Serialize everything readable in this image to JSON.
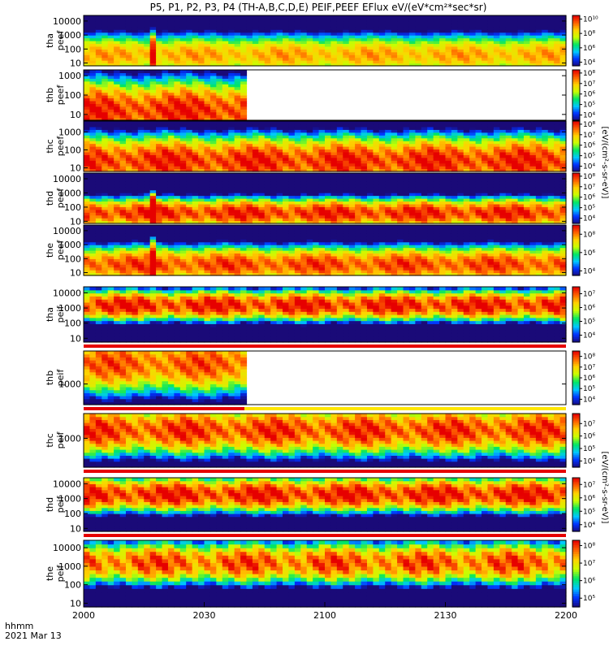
{
  "chart_data": {
    "type": "heatmap",
    "title": "P5, P1, P2, P3, P4 (TH-A,B,C,D,E) PEIF,PEEF EFlux eV/(eV*cm²*sec*sr)",
    "x_tick_labels": [
      "2000",
      "2030",
      "2100",
      "2130",
      "2200"
    ],
    "x_range_minutes": [
      0,
      120
    ],
    "footer_lines": [
      "hhmm",
      "2021 Mar 13"
    ],
    "colorbar_unit_electron": "[eV/(cm²-s-sr-eV)]",
    "colorbar_unit_ion": "[eV/(cm²-s-sr-eV)]",
    "colormap": [
      "#1a0a78",
      "#0032ff",
      "#00c8ff",
      "#00e664",
      "#c8ff00",
      "#ffd200",
      "#ff6400",
      "#e60000"
    ],
    "panels": [
      {
        "label_line1": "tha",
        "label_line2": "peef",
        "species": "electron",
        "y_ticks": [
          "10",
          "100",
          "1000",
          "10000"
        ],
        "y_log_range": [
          0.8,
          4.4
        ],
        "cb_ticks": [
          "10⁴",
          "10⁶",
          "10⁸",
          "10¹⁰"
        ],
        "cb_log_range": [
          3.5,
          10.5
        ],
        "data_end_minutes": 120,
        "peak_log_energy": 1.6,
        "peak_width": 0.7,
        "level": 8.8,
        "spikes": [
          17.5
        ],
        "bottom_stripe": false
      },
      {
        "label_line1": "thb",
        "label_line2": "peef",
        "species": "electron",
        "y_ticks": [
          "10",
          "100",
          "1000"
        ],
        "y_log_range": [
          0.7,
          3.3
        ],
        "cb_ticks": [
          "10⁴",
          "10⁵",
          "10⁶",
          "10⁷",
          "10⁸"
        ],
        "cb_log_range": [
          3.5,
          8.3
        ],
        "data_end_minutes": 40,
        "peak_log_energy": 1.2,
        "peak_width": 0.9,
        "level": 8.0,
        "spikes": [],
        "bottom_stripe": false
      },
      {
        "label_line1": "thc",
        "label_line2": "peef",
        "species": "electron",
        "y_ticks": [
          "10",
          "100",
          "1000"
        ],
        "y_log_range": [
          0.8,
          3.6
        ],
        "cb_ticks": [
          "10⁴",
          "10⁵",
          "10⁶",
          "10⁷",
          "10⁸"
        ],
        "cb_log_range": [
          3.5,
          8.3
        ],
        "data_end_minutes": 120,
        "peak_log_energy": 1.4,
        "peak_width": 0.8,
        "level": 8.0,
        "spikes": [],
        "bottom_stripe": false
      },
      {
        "label_line1": "thd",
        "label_line2": "peef",
        "species": "electron",
        "y_ticks": [
          "10",
          "100",
          "1000",
          "10000"
        ],
        "y_log_range": [
          0.85,
          4.4
        ],
        "cb_ticks": [
          "10⁴",
          "10⁵",
          "10⁶",
          "10⁷",
          "10⁸"
        ],
        "cb_log_range": [
          3.5,
          8.3
        ],
        "data_end_minutes": 120,
        "peak_log_energy": 1.6,
        "peak_width": 0.6,
        "level": 8.0,
        "spikes": [
          17.5
        ],
        "bottom_stripe": false
      },
      {
        "label_line1": "the",
        "label_line2": "peef",
        "species": "electron",
        "y_ticks": [
          "10",
          "100",
          "1000",
          "10000"
        ],
        "y_log_range": [
          0.8,
          4.4
        ],
        "cb_ticks": [
          "10⁴",
          "10⁶",
          "10⁸"
        ],
        "cb_log_range": [
          3.5,
          9.0
        ],
        "data_end_minutes": 120,
        "peak_log_energy": 1.6,
        "peak_width": 0.7,
        "level": 8.4,
        "spikes": [
          17.5
        ],
        "bottom_stripe": false
      },
      {
        "label_line1": "tha",
        "label_line2": "peif",
        "species": "ion",
        "y_ticks": [
          "10",
          "100",
          "1000",
          "10000"
        ],
        "y_log_range": [
          0.75,
          4.4
        ],
        "cb_ticks": [
          "10⁴",
          "10⁵",
          "10⁶",
          "10⁷"
        ],
        "cb_log_range": [
          3.5,
          7.5
        ],
        "data_end_minutes": 120,
        "peak_log_energy": 3.2,
        "peak_width": 0.6,
        "level": 7.3,
        "spikes": [],
        "bottom_stripe": true
      },
      {
        "label_line1": "thb",
        "label_line2": "peif",
        "species": "ion",
        "y_ticks": [
          "1000"
        ],
        "y_log_range": [
          2.5,
          3.8
        ],
        "cb_ticks": [
          "10⁴",
          "10⁵",
          "10⁶",
          "10⁷",
          "10⁸"
        ],
        "cb_log_range": [
          3.5,
          8.5
        ],
        "data_end_minutes": 40,
        "peak_log_energy": 3.5,
        "peak_width": 0.4,
        "level": 7.8,
        "spikes": [],
        "bottom_stripe": true
      },
      {
        "label_line1": "thc",
        "label_line2": "peif",
        "species": "ion",
        "y_ticks": [
          "1000"
        ],
        "y_log_range": [
          2.3,
          3.6
        ],
        "cb_ticks": [
          "10⁴",
          "10⁵",
          "10⁶",
          "10⁷"
        ],
        "cb_log_range": [
          3.5,
          7.8
        ],
        "data_end_minutes": 120,
        "peak_log_energy": 3.2,
        "peak_width": 0.35,
        "level": 7.4,
        "spikes": [],
        "bottom_stripe": true
      },
      {
        "label_line1": "thd",
        "label_line2": "peif",
        "species": "ion",
        "y_ticks": [
          "10",
          "100",
          "1000",
          "10000"
        ],
        "y_log_range": [
          0.8,
          4.4
        ],
        "cb_ticks": [
          "10⁴",
          "10⁵",
          "10⁶",
          "10⁷"
        ],
        "cb_log_range": [
          3.5,
          7.5
        ],
        "data_end_minutes": 120,
        "peak_log_energy": 3.3,
        "peak_width": 0.7,
        "level": 7.3,
        "spikes": [],
        "bottom_stripe": true
      },
      {
        "label_line1": "the",
        "label_line2": "peif",
        "species": "ion",
        "y_ticks": [
          "10",
          "100",
          "1000",
          "10000"
        ],
        "y_log_range": [
          0.8,
          4.4
        ],
        "cb_ticks": [
          "10⁵",
          "10⁶",
          "10⁷",
          "10⁸"
        ],
        "cb_log_range": [
          4.5,
          8.3
        ],
        "data_end_minutes": 120,
        "peak_log_energy": 3.2,
        "peak_width": 0.7,
        "level": 7.8,
        "spikes": [],
        "bottom_stripe": false
      }
    ]
  }
}
